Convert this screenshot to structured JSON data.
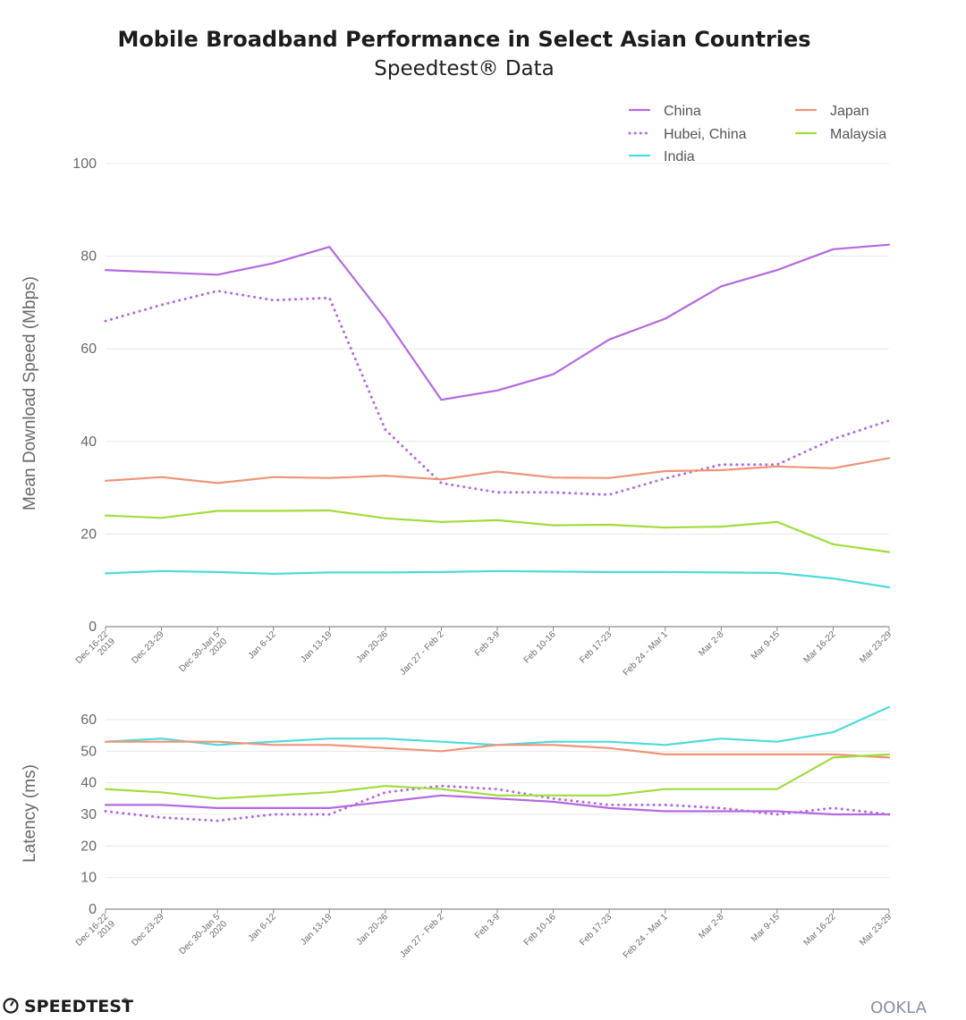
{
  "chart_data": [
    {
      "type": "line",
      "title": "Mobile Broadband Performance in Select Asian Countries",
      "subtitle": "Speedtest® Data",
      "ylabel": "Mean Download Speed (Mbps)",
      "xlabel": "",
      "ylim": [
        0,
        100
      ],
      "yticks": [
        "0",
        "20",
        "40",
        "60",
        "80",
        "100"
      ],
      "categories": [
        [
          "Dec 16-22",
          "2019"
        ],
        [
          "Dec 23-29"
        ],
        [
          "Dec 30-Jan 5",
          "2020"
        ],
        [
          "Jan 6-12"
        ],
        [
          "Jan 13-19"
        ],
        [
          "Jan 20-26"
        ],
        [
          "Jan 27 - Feb 2"
        ],
        [
          "Feb 3-9"
        ],
        [
          "Feb 10-16"
        ],
        [
          "Feb 17-23"
        ],
        [
          "Feb 24 - Mar 1"
        ],
        [
          "Mar 2-8"
        ],
        [
          "Mar 9-15"
        ],
        [
          "Mar 16-22"
        ],
        [
          "Mar 23-29"
        ]
      ],
      "series": [
        {
          "name": "China",
          "color": "#b469e0",
          "dash": false,
          "values": [
            77,
            76.5,
            76,
            78.5,
            82,
            66.5,
            49,
            51,
            54.5,
            62,
            66.5,
            73.5,
            77,
            81.5,
            82.5
          ]
        },
        {
          "name": "Hubei, China",
          "color": "#b469e0",
          "dash": true,
          "values": [
            66,
            69.5,
            72.5,
            70.5,
            71,
            42.5,
            31,
            29,
            29,
            28.5,
            32,
            35,
            35,
            40.5,
            44.5
          ]
        },
        {
          "name": "India",
          "color": "#4ddbd9",
          "dash": false,
          "values": [
            11.5,
            12,
            11.8,
            11.4,
            11.7,
            11.7,
            11.8,
            12,
            11.9,
            11.8,
            11.8,
            11.7,
            11.6,
            10.4,
            8.5
          ]
        },
        {
          "name": "Japan",
          "color": "#ef9477",
          "dash": false,
          "values": [
            31.5,
            32.3,
            31,
            32.3,
            32.1,
            32.6,
            31.8,
            33.5,
            32.2,
            32.1,
            33.6,
            33.8,
            34.6,
            34.2,
            36.4
          ]
        },
        {
          "name": "Malaysia",
          "color": "#a2dc3c",
          "dash": false,
          "values": [
            24,
            23.5,
            25,
            25,
            25.1,
            23.4,
            22.6,
            23,
            21.9,
            22,
            21.4,
            21.6,
            22.6,
            17.8,
            16.1
          ]
        }
      ]
    },
    {
      "type": "line",
      "title": "",
      "ylabel": "Latency (ms)",
      "xlabel": "",
      "ylim": [
        0,
        60
      ],
      "yticks": [
        "0",
        "10",
        "20",
        "30",
        "40",
        "50",
        "60"
      ],
      "categories": [
        [
          "Dec 16-22",
          "2019"
        ],
        [
          "Dec 23-29"
        ],
        [
          "Dec 30-Jan 5",
          "2020"
        ],
        [
          "Jan 6-12"
        ],
        [
          "Jan 13-19"
        ],
        [
          "Jan 20-26"
        ],
        [
          "Jan 27 - Feb 2"
        ],
        [
          "Feb 3-9"
        ],
        [
          "Feb 10-16"
        ],
        [
          "Feb 17-23"
        ],
        [
          "Feb 24 - Mar 1"
        ],
        [
          "Mar 2-8"
        ],
        [
          "Mar 9-15"
        ],
        [
          "Mar 16-22"
        ],
        [
          "Mar 23-29"
        ]
      ],
      "series": [
        {
          "name": "China",
          "color": "#b469e0",
          "dash": false,
          "values": [
            33,
            33,
            32,
            32,
            32,
            34,
            36,
            35,
            34,
            32,
            31,
            31,
            31,
            30,
            30
          ]
        },
        {
          "name": "Hubei, China",
          "color": "#b469e0",
          "dash": true,
          "values": [
            31,
            29,
            28,
            30,
            30,
            37,
            39,
            38,
            35,
            33,
            33,
            32,
            30,
            32,
            30
          ]
        },
        {
          "name": "India",
          "color": "#4ddbd9",
          "dash": false,
          "values": [
            53,
            54,
            52,
            53,
            54,
            54,
            53,
            52,
            53,
            53,
            52,
            54,
            53,
            56,
            64
          ]
        },
        {
          "name": "Japan",
          "color": "#ef9477",
          "dash": false,
          "values": [
            53,
            53,
            53,
            52,
            52,
            51,
            50,
            52,
            52,
            51,
            49,
            49,
            49,
            49,
            48
          ]
        },
        {
          "name": "Malaysia",
          "color": "#a2dc3c",
          "dash": false,
          "values": [
            38,
            37,
            35,
            36,
            37,
            39,
            38,
            36,
            36,
            36,
            38,
            38,
            38,
            48,
            49
          ]
        }
      ]
    }
  ],
  "legend": [
    {
      "name": "China",
      "color": "#b469e0",
      "dash": false
    },
    {
      "name": "Hubei, China",
      "color": "#b469e0",
      "dash": true
    },
    {
      "name": "India",
      "color": "#4ddbd9",
      "dash": false
    },
    {
      "name": "Japan",
      "color": "#ef9477",
      "dash": false
    },
    {
      "name": "Malaysia",
      "color": "#a2dc3c",
      "dash": false
    }
  ],
  "branding": {
    "left": "SPEEDTEST",
    "left_mark": "®",
    "right": "OOKLA"
  },
  "colors": {
    "grid": "#e8e8e8",
    "axis": "#8a8a8a",
    "title": "#1c1c1c"
  }
}
